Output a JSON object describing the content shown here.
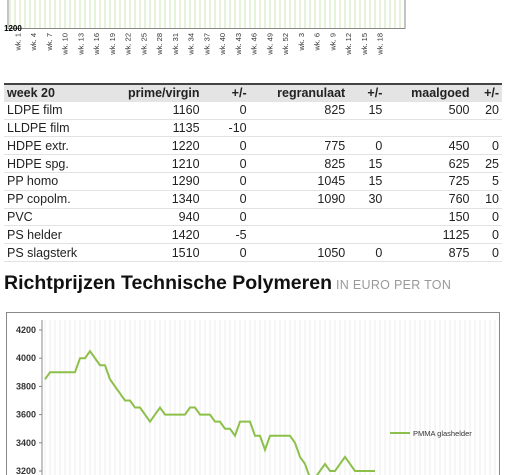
{
  "top_chart": {
    "yticks": [
      1200
    ],
    "categories": [
      "wk. 1",
      "wk. 4",
      "wk. 7",
      "wk. 10",
      "wk. 13",
      "wk. 16",
      "wk. 19",
      "wk. 22",
      "wk. 25",
      "wk. 28",
      "wk. 31",
      "wk. 34",
      "wk. 37",
      "wk. 40",
      "wk. 43",
      "wk. 46",
      "wk. 49",
      "wk. 52",
      "wk. 3",
      "wk. 6",
      "wk. 9",
      "wk. 12",
      "wk. 15",
      "wk. 18"
    ]
  },
  "table": {
    "header": [
      "week 20",
      "prime/virgin",
      "+/-",
      "regranulaat",
      "+/-",
      "maalgoed",
      "+/-"
    ],
    "rows": [
      [
        "LDPE film",
        1160,
        0,
        825,
        15,
        500,
        20
      ],
      [
        "LLDPE film",
        1135,
        -10,
        null,
        null,
        null,
        null
      ],
      [
        "HDPE extr.",
        1220,
        0,
        775,
        0,
        450,
        0
      ],
      [
        "HDPE spg.",
        1210,
        0,
        825,
        15,
        625,
        25
      ],
      [
        "PP homo",
        1290,
        0,
        1045,
        15,
        725,
        5
      ],
      [
        "PP copolm.",
        1340,
        0,
        1090,
        30,
        760,
        10
      ],
      [
        "PVC",
        940,
        0,
        null,
        null,
        150,
        0
      ],
      [
        "PS helder",
        1420,
        -5,
        null,
        null,
        1125,
        0
      ],
      [
        "PS slagsterk",
        1510,
        0,
        1050,
        0,
        875,
        0
      ]
    ]
  },
  "heading": {
    "title": "Richtprijzen Technische Polymeren",
    "subtitle": "IN EURO PER TON"
  },
  "chart_data": {
    "type": "line",
    "ylim": [
      3200,
      4200
    ],
    "yticks": [
      3200,
      3400,
      3600,
      3800,
      4000,
      4200
    ],
    "series": [
      {
        "name": "PMMA glashelder",
        "color": "#8cc04a",
        "values": [
          3850,
          3900,
          3900,
          3900,
          3900,
          3900,
          3900,
          4000,
          4000,
          4050,
          4000,
          3950,
          3950,
          3850,
          3800,
          3750,
          3700,
          3700,
          3650,
          3650,
          3600,
          3550,
          3600,
          3650,
          3600,
          3600,
          3600,
          3600,
          3600,
          3650,
          3650,
          3600,
          3600,
          3600,
          3550,
          3550,
          3500,
          3500,
          3450,
          3550,
          3550,
          3550,
          3450,
          3450,
          3350,
          3450,
          3450,
          3450,
          3450,
          3450,
          3400,
          3300,
          3250,
          3150,
          3150,
          3200,
          3250,
          3200,
          3200,
          3250,
          3300,
          3250,
          3200,
          3200,
          3200,
          3200,
          3200
        ]
      }
    ]
  }
}
